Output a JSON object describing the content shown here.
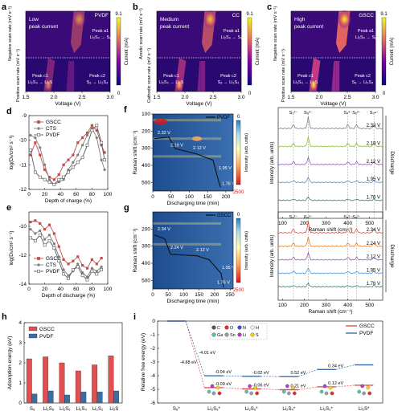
{
  "chart_data": [
    {
      "panel": "a",
      "type": "heatmap",
      "title": "PVDF",
      "note": "Low peak current",
      "xlabel": "Voltage (V)",
      "ylabel_top": "Negative scan rate (mV s⁻¹)",
      "ylabel_bottom": "Positive scan rate (mV s⁻¹)",
      "xticks": [
        "1.5",
        "2.0",
        "2.5",
        "3.0"
      ],
      "xlim": [
        1.5,
        3.0
      ],
      "colorbar": {
        "label": "Current (mA)",
        "min": "0",
        "max": "9.1"
      },
      "peaks": [
        {
          "name": "Peak a1",
          "reaction": "Li₂S₄ → S₈"
        },
        {
          "name": "Peak c1",
          "reaction": "Li₂S₄ → Li₂S"
        },
        {
          "name": "Peak c2",
          "reaction": "S₈ → Li₂S₄"
        }
      ]
    },
    {
      "panel": "b",
      "type": "heatmap",
      "title": "CC",
      "note": "Medium peak current",
      "xlabel": "Voltage (V)",
      "ylabel_top": "Anodic scan rate (mV s⁻¹)",
      "ylabel_bottom": "Cathodic scan rate (mV s⁻¹)",
      "xticks": [
        "1.5",
        "2.0",
        "2.5",
        "3.0"
      ],
      "xlim": [
        1.5,
        3.0
      ],
      "colorbar": {
        "label": "Current (mA)",
        "min": "0",
        "max": "9.1"
      },
      "peaks": [
        {
          "name": "Peak a1",
          "reaction": "Li₂S₄ → S₈"
        },
        {
          "name": "Peak c1",
          "reaction": "Li₂S₄ → Li₂S"
        },
        {
          "name": "Peak c2",
          "reaction": "S₈ → Li₂S₄"
        }
      ]
    },
    {
      "panel": "c",
      "type": "heatmap",
      "title": "GSCC",
      "note": "High peak current",
      "xlabel": "Voltage (V)",
      "ylabel_top": "Negative scan rate (mV s⁻¹)",
      "ylabel_bottom": "Positive scan rate (mV s⁻¹)",
      "xticks": [
        "1.5",
        "2.0",
        "2.5",
        "3.0"
      ],
      "xlim": [
        1.5,
        3.0
      ],
      "colorbar": {
        "label": "Current (mA)",
        "min": "0",
        "max": "9.1"
      },
      "peaks": [
        {
          "name": "Peak a1",
          "reaction": "Li₂S₄ → S₈"
        },
        {
          "name": "Peak c1",
          "reaction": "Li₂S₄ → Li₂S"
        },
        {
          "name": "Peak c2",
          "reaction": "S₈ → Li₂S₄"
        }
      ]
    },
    {
      "panel": "d",
      "type": "line",
      "xlabel": "Depth of charge (%)",
      "ylabel": "log(Dₗᵢ/cm² s⁻¹)",
      "xlim": [
        0,
        100
      ],
      "ylim": [
        -12,
        -9
      ],
      "xticks": [
        "0",
        "20",
        "40",
        "60",
        "80",
        "100"
      ],
      "yticks": [
        "-9",
        "-10",
        "-11",
        "-12"
      ],
      "series": [
        {
          "name": "GSCC",
          "color": "#c0504d",
          "marker": "square",
          "x": [
            2,
            8,
            14,
            20,
            26,
            32,
            38,
            44,
            50,
            56,
            62,
            68,
            74,
            80,
            86,
            92,
            96
          ],
          "y": [
            -10.6,
            -10.1,
            -10.6,
            -11.2,
            -11.5,
            -11.6,
            -11.4,
            -11.0,
            -10.8,
            -10.6,
            -10.1,
            -9.9,
            -9.7,
            -9.4,
            -9.6,
            -10.2,
            -10.5
          ]
        },
        {
          "name": "CTS",
          "color": "#7f7f7f",
          "marker": "circle",
          "x": [
            2,
            8,
            14,
            20,
            26,
            32,
            38,
            44,
            50,
            56,
            62,
            68,
            74,
            80,
            86,
            92,
            96
          ],
          "y": [
            -9.8,
            -9.9,
            -10.3,
            -11.0,
            -11.6,
            -11.8,
            -11.7,
            -11.6,
            -11.2,
            -10.9,
            -10.6,
            -10.2,
            -9.8,
            -9.5,
            -9.9,
            -10.8,
            -11.2
          ]
        },
        {
          "name": "PVDF",
          "color": "#595959",
          "marker": "open-square",
          "x": [
            2,
            8,
            14,
            20,
            26,
            32,
            38,
            44,
            50,
            56,
            62,
            68,
            74,
            80,
            86,
            92,
            96
          ],
          "y": [
            -10.4,
            -11.3,
            -11.5,
            -11.6,
            -11.7,
            -11.8,
            -11.6,
            -11.5,
            -11.3,
            -11.1,
            -10.9,
            -10.7,
            -10.2,
            -9.6,
            -9.4,
            -10.1,
            -10.8
          ]
        }
      ]
    },
    {
      "panel": "e",
      "type": "line",
      "xlabel": "Depth of discharge (%)",
      "ylabel": "log(Dₗᵢ/cm² s⁻¹)",
      "xlim": [
        0,
        100
      ],
      "ylim": [
        -14,
        -9
      ],
      "xticks": [
        "0",
        "20",
        "40",
        "60",
        "80",
        "100"
      ],
      "yticks": [
        "-10",
        "-12",
        "-14"
      ],
      "series": [
        {
          "name": "GSCC",
          "color": "#c0504d",
          "marker": "square",
          "x": [
            2,
            8,
            14,
            20,
            26,
            32,
            38,
            44,
            50,
            56,
            62,
            68,
            74,
            80,
            86,
            92
          ],
          "y": [
            -9.7,
            -9.6,
            -9.8,
            -10.2,
            -9.9,
            -10.5,
            -11.4,
            -12.3,
            -12.6,
            -12.4,
            -12.1,
            -12.7,
            -12.9,
            -12.3,
            -12.6,
            -12.2
          ]
        },
        {
          "name": "CTS",
          "color": "#7f7f7f",
          "marker": "circle",
          "x": [
            2,
            8,
            14,
            20,
            26,
            32,
            38,
            44,
            50,
            56,
            62,
            68,
            74,
            80,
            86,
            92
          ],
          "y": [
            -10.2,
            -10.5,
            -10.3,
            -10.9,
            -10.6,
            -11.2,
            -12.1,
            -13.0,
            -13.4,
            -13.1,
            -12.6,
            -13.2,
            -13.5,
            -12.9,
            -13.1,
            -12.8
          ]
        },
        {
          "name": "PVDF",
          "color": "#595959",
          "marker": "open-square",
          "x": [
            2,
            8,
            14,
            20,
            26,
            32,
            38,
            44,
            50,
            56,
            62,
            68,
            74,
            80,
            86,
            92
          ],
          "y": [
            -10.8,
            -11.0,
            -10.6,
            -11.3,
            -11.0,
            -11.5,
            -12.4,
            -13.3,
            -13.6,
            -13.0,
            -12.8,
            -13.4,
            -13.7,
            -13.1,
            -13.3,
            -13.0
          ]
        }
      ]
    },
    {
      "panel": "f",
      "type": "heatmap",
      "series_name": "PVDF",
      "xlabel": "Discharging time (min)",
      "ylabel": "Raman shift (cm⁻¹)",
      "zlabel": "Intensity (arb. units)",
      "xticks": [
        "0",
        "50",
        "100",
        "150",
        "200"
      ],
      "yticks": [
        "100",
        "200",
        "300",
        "400",
        "500"
      ],
      "colorbar": {
        "min": "0",
        "max": "2500"
      },
      "curve_labels": [
        "2.32 V",
        "2.19 V",
        "2.12 V",
        "1.95 V",
        "1.76 V"
      ]
    },
    {
      "panel": "g",
      "type": "heatmap",
      "series_name": "GSCC",
      "xlabel": "Discharging time (min)",
      "ylabel": "Raman shift (cm⁻¹)",
      "zlabel": "Intensity (arb. units)",
      "xticks": [
        "0",
        "50",
        "100",
        "150",
        "200",
        "250"
      ],
      "yticks": [
        "200",
        "300",
        "400",
        "500"
      ],
      "colorbar": {
        "min": "0",
        "max": "2500"
      },
      "curve_labels": [
        "2.34 V",
        "2.24 V",
        "2.12 V",
        "1.95 V",
        "1.76 V"
      ]
    },
    {
      "panel": "f-spectra",
      "type": "line",
      "xlabel": "Raman shift (cm⁻¹)",
      "ylabel": "Intensity (arb. units)",
      "side_label": "Discharge",
      "xticks": [
        "100",
        "200",
        "300",
        "400",
        "500"
      ],
      "peak_labels": [
        "S₃²⁻",
        "S₈²⁻",
        "S₄²⁻",
        "S₆²⁻",
        "S₃•⁻"
      ],
      "traces": [
        {
          "label": "2.32 V",
          "color": "#7f7f7f"
        },
        {
          "label": "2.19 V",
          "color": "#8fbc3f"
        },
        {
          "label": "2.12 V",
          "color": "#9b59b6"
        },
        {
          "label": "1.95 V",
          "color": "#4a90d9"
        },
        {
          "label": "1.76 V",
          "color": "#2e8b57"
        }
      ]
    },
    {
      "panel": "g-spectra",
      "type": "line",
      "xlabel": "Raman shift (cm⁻¹)",
      "ylabel": "Intensity (arb. units)",
      "side_label": "Discharge",
      "xticks": [
        "100",
        "200",
        "300",
        "400",
        "500"
      ],
      "peak_labels": [
        "S₃²⁻",
        "S₈²⁻",
        "S₄²⁻",
        "S₆²⁻"
      ],
      "traces": [
        {
          "label": "2.34 V",
          "color": "#e74c3c"
        },
        {
          "label": "2.24 V",
          "color": "#e67e22"
        },
        {
          "label": "2.12 V",
          "color": "#9b59b6"
        },
        {
          "label": "1.95 V",
          "color": "#4a90d9"
        },
        {
          "label": "1.76 V",
          "color": "#2e8b57"
        }
      ]
    },
    {
      "panel": "h",
      "type": "bar",
      "ylabel": "Adsorption energy (eV)",
      "ylim": [
        0,
        4
      ],
      "yticks": [
        "0",
        "1",
        "2",
        "3",
        "4"
      ],
      "categories": [
        "S₈",
        "Li₂S₈",
        "Li₂S₆",
        "Li₂S₄",
        "Li₂S₂",
        "Li₂S"
      ],
      "series": [
        {
          "name": "GSCC",
          "color": "#e05050",
          "values": [
            2.2,
            2.3,
            2.0,
            1.6,
            1.9,
            2.35
          ]
        },
        {
          "name": "PVDF",
          "color": "#3a6ea5",
          "values": [
            0.45,
            0.6,
            0.4,
            0.55,
            0.55,
            0.6
          ]
        }
      ]
    },
    {
      "panel": "i",
      "type": "line",
      "ylabel": "Relative free energy (eV)",
      "ylim": [
        -6,
        0
      ],
      "yticks": [
        "0",
        "-1",
        "-2",
        "-3",
        "-4",
        "-5",
        "-6"
      ],
      "categories": [
        "S₈*",
        "Li₂S₈*",
        "Li₂S₆*",
        "Li₂S₄*",
        "Li₂S₂*",
        "Li₂S*"
      ],
      "legend_atoms": [
        "C",
        "O",
        "N",
        "H",
        "Ga",
        "Sn",
        "Li",
        "S"
      ],
      "series": [
        {
          "name": "GSCC",
          "color": "#e05050",
          "values": [
            0,
            -4.88,
            -4.97,
            -5.03,
            -4.82,
            -4.7
          ]
        },
        {
          "name": "PVDF",
          "color": "#3a6ea5",
          "values": [
            0,
            -4.01,
            -4.05,
            -4.07,
            -3.55,
            -3.21
          ]
        }
      ],
      "annotations_gscc": [
        "-4.88 eV",
        "-0.09 eV",
        "-0.06 eV",
        "0.21 eV",
        "0.12 eV"
      ],
      "annotations_pvdf": [
        "-4.01 eV",
        "-0.04 eV",
        "-0.02 eV",
        "0.52 eV",
        "0.34 eV"
      ]
    }
  ]
}
